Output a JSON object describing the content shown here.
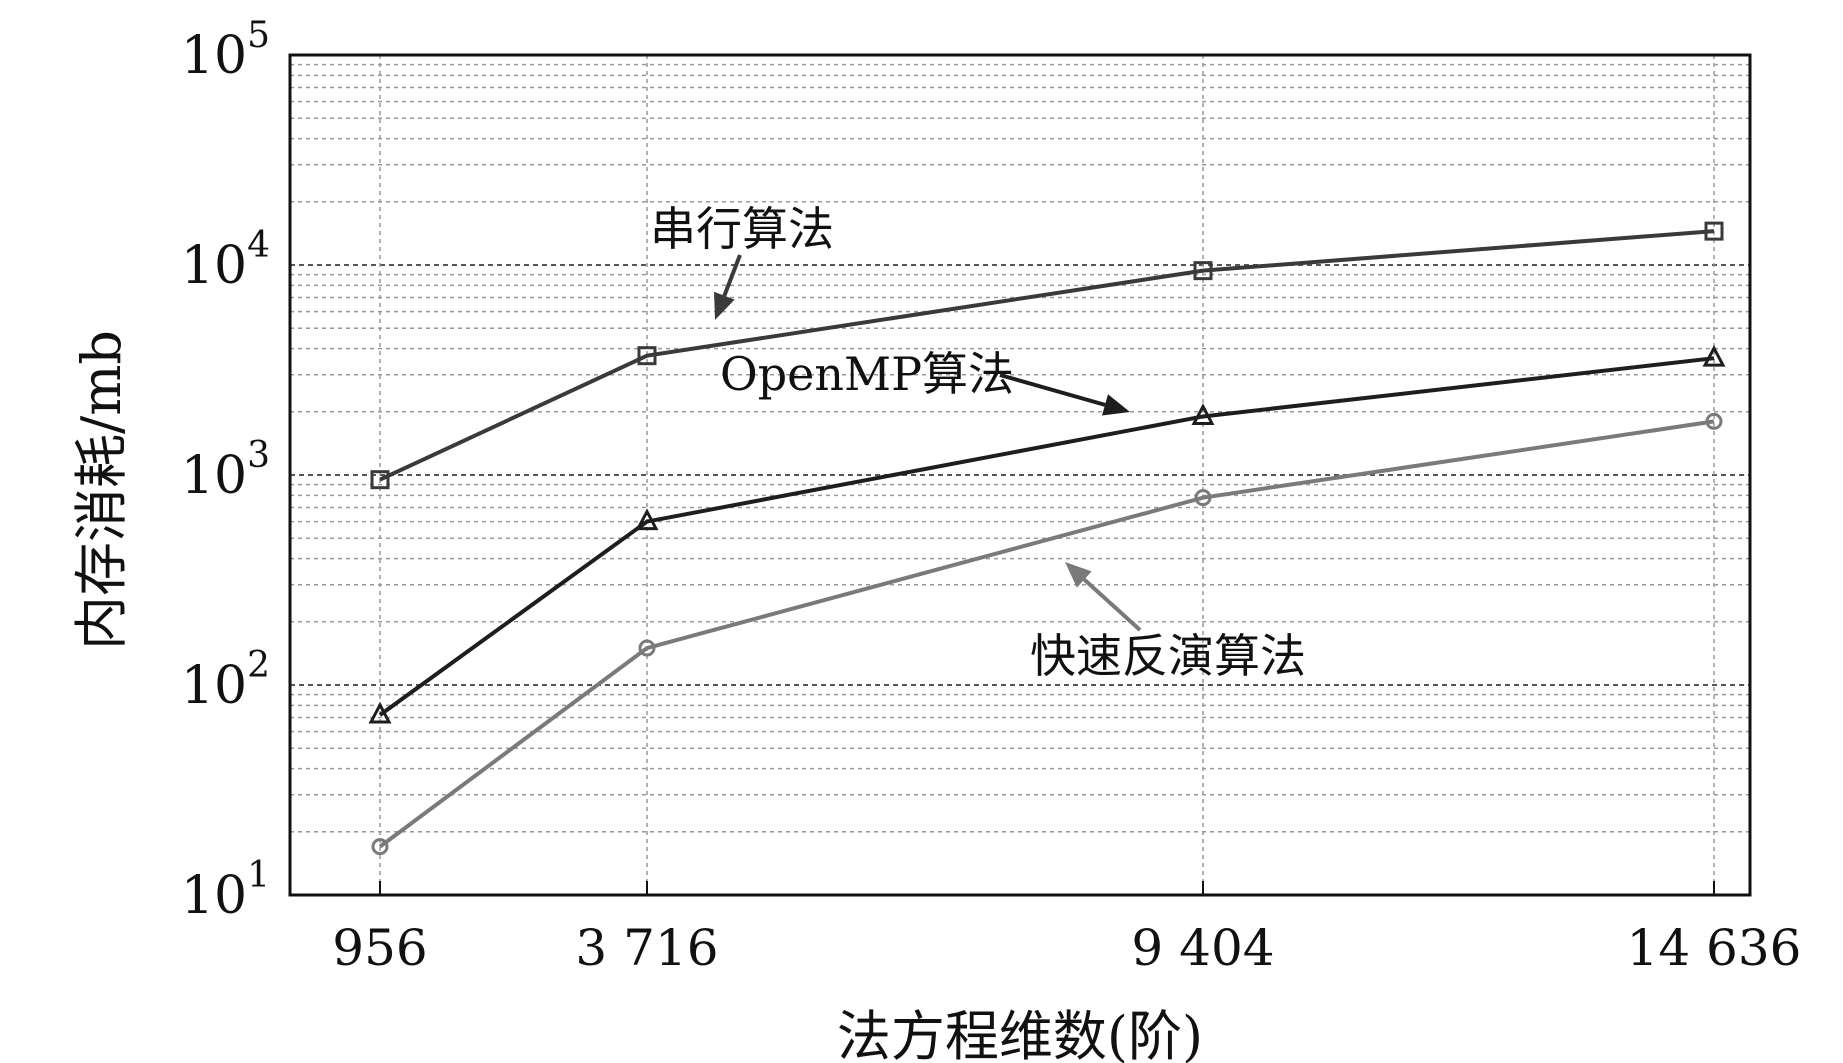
{
  "chart_data": {
    "type": "line",
    "x_scale": "categorical",
    "y_scale": "log",
    "categories": [
      "956",
      "3 716",
      "9 404",
      "14 636"
    ],
    "x": [
      956,
      3716,
      9404,
      14636
    ],
    "ylim": [
      10,
      100000
    ],
    "y_ticks": [
      {
        "base": "10",
        "exp": "1"
      },
      {
        "base": "10",
        "exp": "2"
      },
      {
        "base": "10",
        "exp": "3"
      },
      {
        "base": "10",
        "exp": "4"
      },
      {
        "base": "10",
        "exp": "5"
      }
    ],
    "xlabel": "法方程维数(阶)",
    "ylabel": "内存消耗/mb",
    "grid": true,
    "series": [
      {
        "name": "串行算法",
        "marker": "square",
        "color": "#3a3a3a",
        "values": [
          950,
          3700,
          9400,
          14500
        ]
      },
      {
        "name": "OpenMP算法",
        "marker": "triangle",
        "color": "#1e1e1e",
        "values": [
          72,
          600,
          1900,
          3600
        ]
      },
      {
        "name": "快速反演算法",
        "marker": "circle",
        "color": "#7a7a7a",
        "values": [
          17,
          150,
          780,
          1800
        ]
      }
    ],
    "annotations": [
      {
        "text": "串行算法",
        "series": "串行算法"
      },
      {
        "text": "OpenMP算法",
        "series": "OpenMP算法"
      },
      {
        "text": "快速反演算法",
        "series": "快速反演算法"
      }
    ]
  }
}
